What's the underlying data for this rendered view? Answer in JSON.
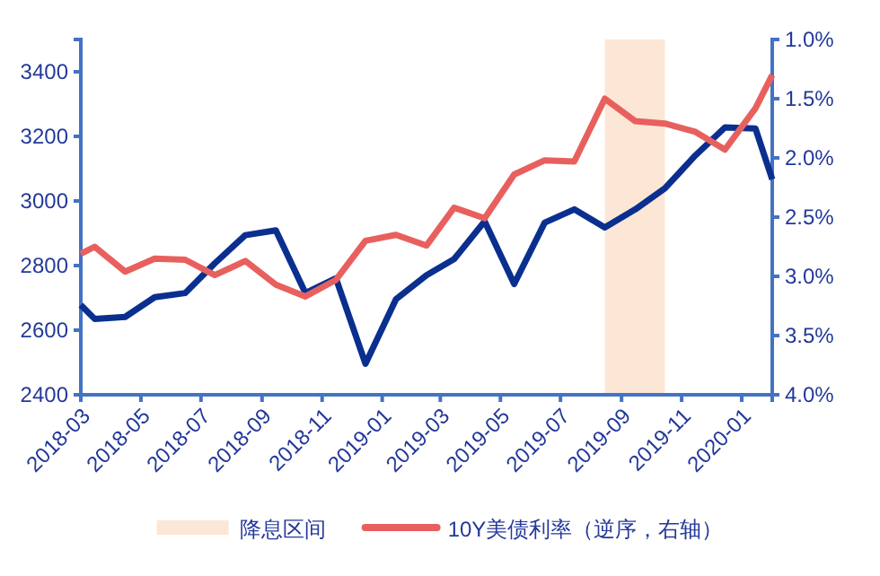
{
  "chart_data": {
    "type": "line",
    "x": [
      "2018-03-01",
      "2018-03-15",
      "2018-04-15",
      "2018-05-15",
      "2018-06-15",
      "2018-07-15",
      "2018-08-15",
      "2018-09-15",
      "2018-10-15",
      "2018-11-15",
      "2018-12-15",
      "2019-01-15",
      "2019-02-15",
      "2019-03-15",
      "2019-04-15",
      "2019-05-15",
      "2019-06-15",
      "2019-07-15",
      "2019-08-15",
      "2019-09-15",
      "2019-10-15",
      "2019-11-15",
      "2019-12-15",
      "2020-01-15",
      "2020-02-01"
    ],
    "series": [
      {
        "color": "#0a2f8f",
        "values": [
          2678,
          2635,
          2641,
          2702,
          2715,
          2807,
          2894,
          2909,
          2715,
          2761,
          2496,
          2696,
          2770,
          2820,
          2937,
          2743,
          2933,
          2974,
          2918,
          2974,
          3039,
          3141,
          3228,
          3224,
          3067
        ]
      },
      {
        "name": "10Y美债利率（逆序，右轴）",
        "color": "#e8605e",
        "axis": "y2",
        "values": [
          2.81,
          2.75,
          2.96,
          2.85,
          2.86,
          2.99,
          2.87,
          3.07,
          3.17,
          3.03,
          2.7,
          2.65,
          2.74,
          2.42,
          2.51,
          2.14,
          2.02,
          2.03,
          1.5,
          1.69,
          1.71,
          1.78,
          1.93,
          1.58,
          1.3
        ]
      }
    ],
    "xlim": [
      "2018-03-01",
      "2020-02-01"
    ],
    "xticks": [
      "2018-03",
      "2018-05",
      "2018-07",
      "2018-09",
      "2018-11",
      "2019-01",
      "2019-03",
      "2019-05",
      "2019-07",
      "2019-09",
      "2019-11",
      "2020-01"
    ],
    "ylim": [
      2400,
      3500
    ],
    "yticks": [
      2400,
      2600,
      2800,
      3000,
      3200,
      3400
    ],
    "y2lim": [
      4.0,
      1.0
    ],
    "y2ticks": [
      {
        "value": 1.0,
        "label": "1.0%"
      },
      {
        "value": 1.5,
        "label": "1.5%"
      },
      {
        "value": 2.0,
        "label": "2.0%"
      },
      {
        "value": 2.5,
        "label": "2.5%"
      },
      {
        "value": 3.0,
        "label": "3.0%"
      },
      {
        "value": 3.5,
        "label": "3.5%"
      },
      {
        "value": 4.0,
        "label": "4.0%"
      }
    ],
    "bands": [
      {
        "axis": "x",
        "from": "2019-08-15",
        "to": "2019-10-15",
        "label": "降息区间",
        "color": "#fce6d6"
      }
    ],
    "legend": "bottom",
    "grid": false
  }
}
